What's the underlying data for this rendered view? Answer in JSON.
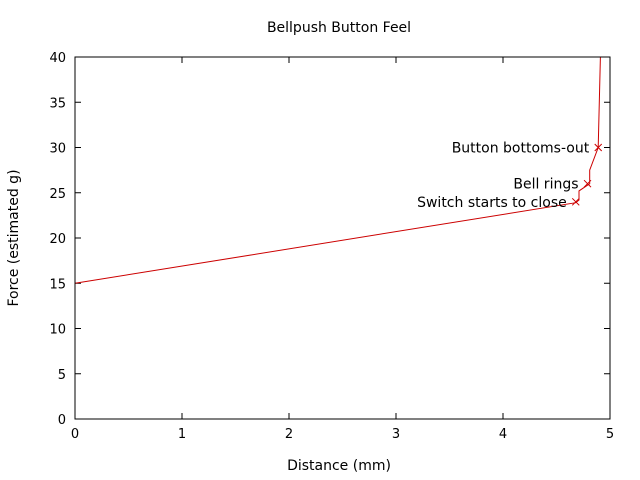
{
  "chart_data": {
    "type": "line",
    "title": "Bellpush Button Feel",
    "xlabel": "Distance (mm)",
    "ylabel": "Force (estimated g)",
    "xlim": [
      0,
      5
    ],
    "ylim": [
      0,
      40
    ],
    "xticks": [
      "0",
      "1",
      "2",
      "3",
      "4",
      "5"
    ],
    "yticks": [
      "0",
      "5",
      "10",
      "15",
      "20",
      "25",
      "30",
      "35",
      "40"
    ],
    "grid": false,
    "legend": "none",
    "series": [
      {
        "color": "#cc0000",
        "points": [
          {
            "x": 0,
            "y": 15
          },
          {
            "x": 4.68,
            "y": 23.9
          },
          {
            "x": 4.71,
            "y": 24.2
          },
          {
            "x": 4.71,
            "y": 25.2
          },
          {
            "x": 4.81,
            "y": 26
          },
          {
            "x": 4.81,
            "y": 27.5
          },
          {
            "x": 4.89,
            "y": 30
          },
          {
            "x": 4.91,
            "y": 40
          }
        ]
      }
    ],
    "annotations": [
      {
        "text": "Switch starts to close",
        "x": 4.68,
        "y": 24
      },
      {
        "text": "Bell rings",
        "x": 4.79,
        "y": 26
      },
      {
        "text": "Button bottoms-out",
        "x": 4.89,
        "y": 30
      }
    ]
  }
}
